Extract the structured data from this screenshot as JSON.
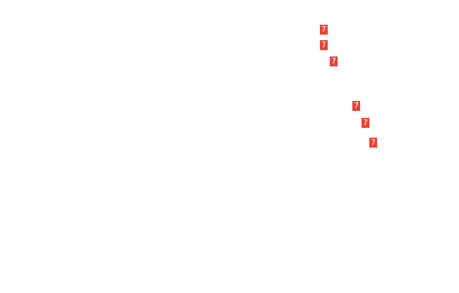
{
  "badge_color": "#ea4335",
  "badges": [
    {
      "label": "7"
    },
    {
      "label": "7"
    },
    {
      "label": "7"
    },
    {
      "label": "7"
    },
    {
      "label": "7"
    },
    {
      "label": "7"
    }
  ]
}
